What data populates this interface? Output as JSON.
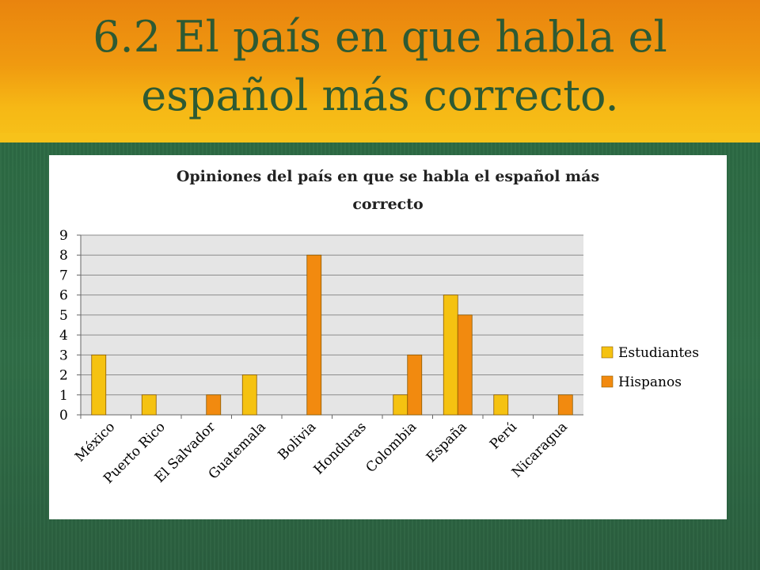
{
  "slide": {
    "title_line1": "6.2  El país en que habla el",
    "title_line2": "español más correcto."
  },
  "colors": {
    "header": "#f09a10",
    "background": "#2f6b45",
    "title_text": "#2d5a33",
    "plot_area": "#e5e5e5",
    "gridline": "#8c8c8c"
  },
  "chart_data": {
    "type": "bar",
    "title_line1": "Opiniones del país en que se habla el español más",
    "title_line2": "correcto",
    "categories": [
      "México",
      "Puerto Rico",
      "El Salvador",
      "Guatemala",
      "Bolivia",
      "Honduras",
      "Colombia",
      "España",
      "Perú",
      "Nicaragua"
    ],
    "series": [
      {
        "name": "Estudiantes",
        "color": "#f5c211",
        "values": [
          3,
          1,
          0,
          2,
          0,
          0,
          1,
          6,
          1,
          0
        ]
      },
      {
        "name": "Hispanos",
        "color": "#f28a0f",
        "values": [
          0,
          0,
          1,
          0,
          8,
          0,
          3,
          5,
          0,
          1
        ]
      }
    ],
    "y_ticks": [
      "0",
      "1",
      "2",
      "3",
      "4",
      "5",
      "6",
      "7",
      "8",
      "9"
    ],
    "ylim": [
      0,
      9
    ],
    "grid": true,
    "legend_position": "right"
  }
}
